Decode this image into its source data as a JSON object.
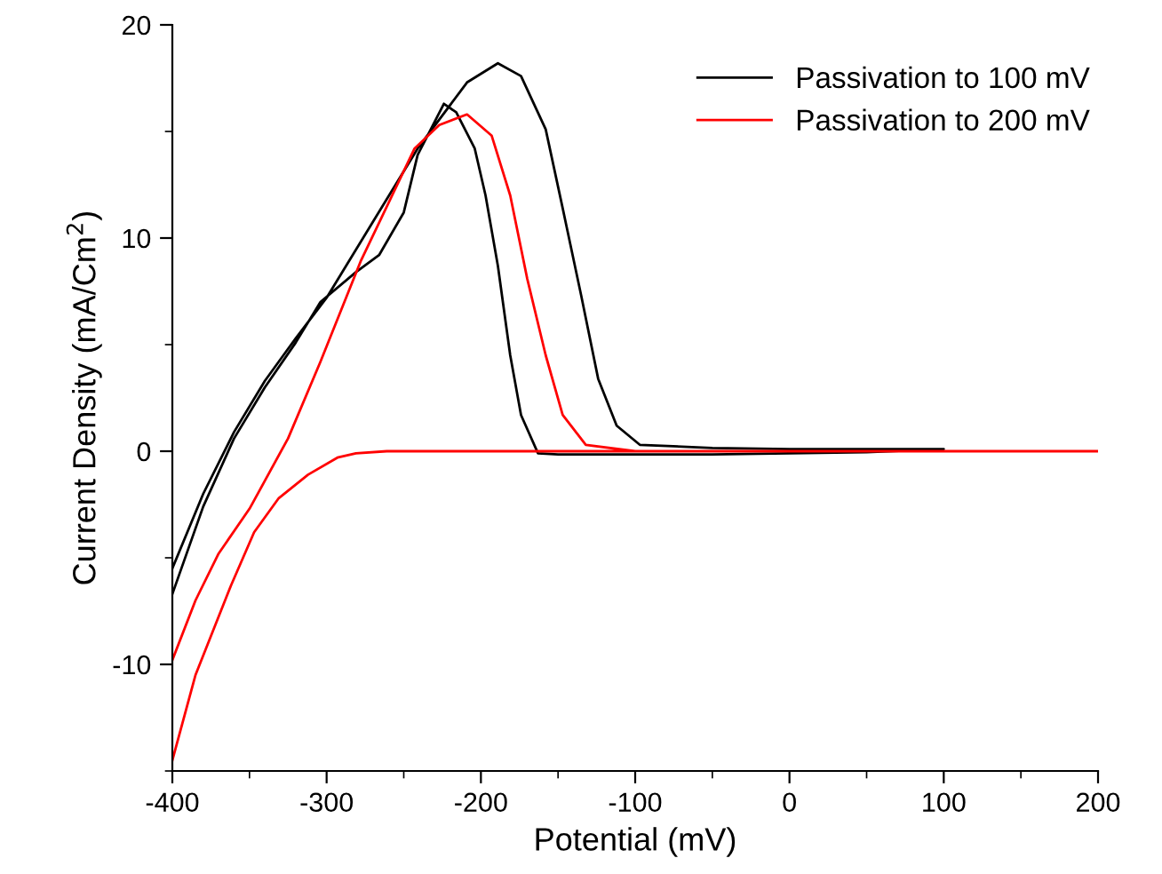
{
  "chart_data": {
    "type": "line",
    "xlabel": "Potential (mV)",
    "ylabel": "Current Density (mA/Cm$^{2}$)",
    "xlim": [
      -400,
      200
    ],
    "xticks": [
      -400,
      -300,
      -200,
      -100,
      0,
      100,
      200
    ],
    "ylim": [
      -15,
      20
    ],
    "yticks": [
      -10,
      0,
      10,
      20
    ],
    "grid": false,
    "legend": "top right",
    "marker": "none",
    "line_style": "solid",
    "series": [
      {
        "name": "Passivation to 100 mV",
        "color": "#000000",
        "x": [
          -400,
          -380,
          -360,
          -340,
          -320,
          -300,
          -241,
          -209,
          -189,
          -174,
          -158,
          -147,
          -135,
          -124,
          -112,
          -97,
          -50,
          0,
          50,
          100,
          50,
          0,
          -50,
          -100,
          -150,
          -163,
          -174,
          -181,
          -189,
          -197,
          -204,
          -216,
          -224,
          -241,
          -250,
          -266,
          -281,
          -304,
          -320,
          -340,
          -360,
          -380,
          -400
        ],
        "values": [
          -5.5,
          -2.0,
          0.9,
          3.3,
          5.3,
          7.2,
          14.2,
          17.3,
          18.2,
          17.6,
          15.1,
          11.4,
          7.3,
          3.4,
          1.2,
          0.3,
          0.15,
          0.1,
          0.1,
          0.1,
          -0.05,
          -0.1,
          -0.15,
          -0.15,
          -0.15,
          -0.1,
          1.7,
          4.5,
          8.7,
          12.0,
          14.2,
          15.9,
          16.3,
          13.9,
          11.2,
          9.2,
          8.4,
          7.0,
          5.1,
          3.0,
          0.6,
          -2.6,
          -6.7
        ]
      },
      {
        "name": "Passivation to 200 mV",
        "color": "#ff0000",
        "x": [
          -400,
          -385,
          -370,
          -350,
          -325,
          -304,
          -278,
          -243,
          -227,
          -209,
          -193,
          -181,
          -170,
          -158,
          -147,
          -132,
          -100,
          0,
          100,
          200,
          100,
          0,
          -100,
          -200,
          -261,
          -281,
          -293,
          -312,
          -331,
          -347,
          -362,
          -385,
          -400
        ],
        "values": [
          -9.8,
          -7.0,
          -4.8,
          -2.7,
          0.6,
          4.2,
          8.9,
          14.2,
          15.3,
          15.8,
          14.8,
          12.0,
          8.1,
          4.5,
          1.7,
          0.3,
          0.0,
          0.0,
          0.0,
          0.0,
          0.0,
          0.0,
          0.0,
          0.0,
          0.0,
          -0.1,
          -0.3,
          -1.1,
          -2.2,
          -3.8,
          -6.3,
          -10.5,
          -14.5
        ]
      }
    ]
  }
}
